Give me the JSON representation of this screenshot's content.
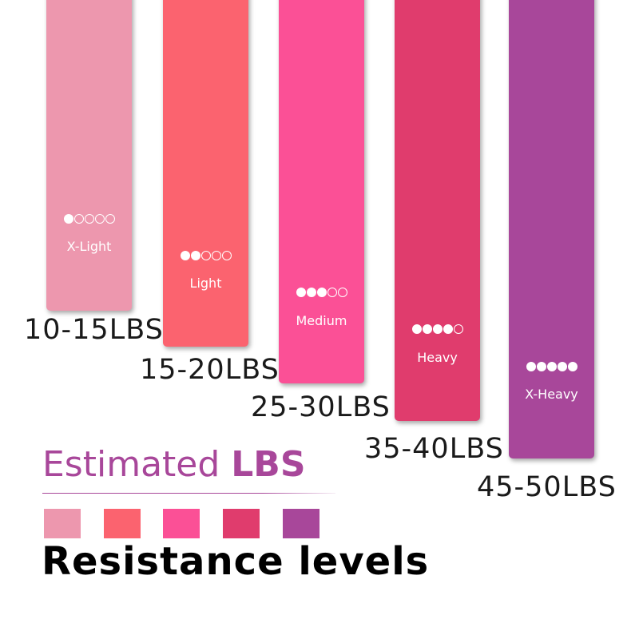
{
  "levels": [
    {
      "name": "X-Light",
      "range": "10-15LBS",
      "color": "#ed97ae",
      "rating": 1,
      "max": 5
    },
    {
      "name": "Light",
      "range": "15-20LBS",
      "color": "#fb636f",
      "rating": 2,
      "max": 5
    },
    {
      "name": "Medium",
      "range": "25-30LBS",
      "color": "#fb5096",
      "rating": 3,
      "max": 5
    },
    {
      "name": "Heavy",
      "range": "35-40LBS",
      "color": "#e03c6d",
      "rating": 4,
      "max": 5
    },
    {
      "name": "X-Heavy",
      "range": "45-50LBS",
      "color": "#a8479a",
      "rating": 5,
      "max": 5
    }
  ],
  "heading": {
    "prefix": "Estimated ",
    "emphasis": "LBS",
    "color": "#a8479a"
  },
  "footer": "Resistance levels"
}
